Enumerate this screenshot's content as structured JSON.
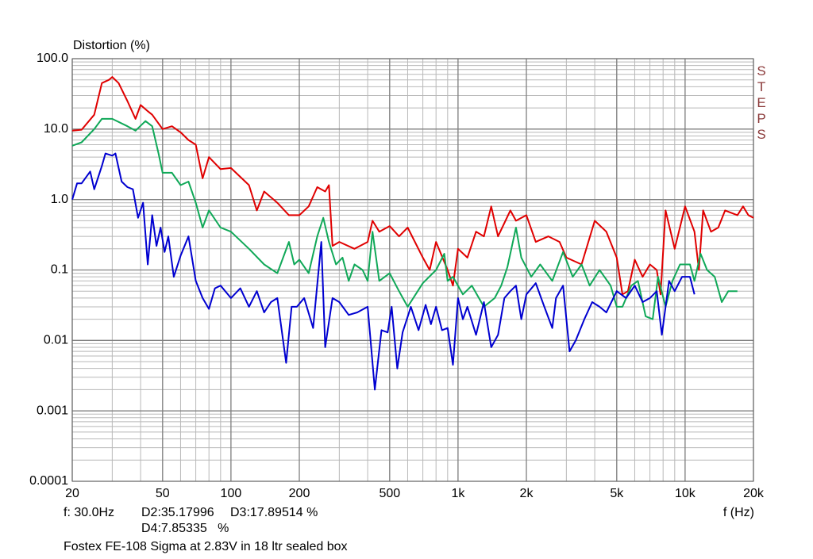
{
  "chart_data": {
    "type": "line",
    "title": "Distortion (%)",
    "x_label": "f (Hz)",
    "brand": "STEPS",
    "readout": [
      "f: 30.0Hz",
      "D2:35.17996",
      "D3:17.89514 %",
      "D4:7.85335   %"
    ],
    "caption": "Fostex FE-108 Sigma at 2.83V in 18 ltr sealed box",
    "xscale": "log",
    "yscale": "log",
    "grid": true,
    "xlim": [
      20,
      20000
    ],
    "ylim": [
      0.0001,
      100
    ],
    "xticks": [
      20,
      50,
      100,
      200,
      500,
      {
        "value": 1000,
        "label": "1k"
      },
      {
        "value": 2000,
        "label": "2k"
      },
      {
        "value": 5000,
        "label": "5k"
      },
      {
        "value": 10000,
        "label": "10k"
      },
      {
        "value": 20000,
        "label": "20k"
      }
    ],
    "yticks": [
      {
        "value": 100,
        "label": "100.0"
      },
      {
        "value": 10,
        "label": "10.0"
      },
      {
        "value": 1,
        "label": "1.0"
      },
      0.1,
      0.01,
      0.001,
      0.0001
    ],
    "series": [
      {
        "color": "#e00000",
        "x": [
          20,
          22,
          25,
          27,
          29,
          30,
          32,
          35,
          38,
          40,
          43,
          45,
          50,
          55,
          60,
          65,
          70,
          75,
          80,
          90,
          100,
          120,
          130,
          140,
          160,
          180,
          200,
          220,
          240,
          260,
          270,
          280,
          300,
          350,
          400,
          420,
          450,
          500,
          550,
          600,
          700,
          750,
          800,
          900,
          950,
          1000,
          1100,
          1200,
          1300,
          1400,
          1500,
          1700,
          1800,
          2000,
          2200,
          2500,
          2800,
          3000,
          3500,
          4000,
          4500,
          5000,
          5300,
          5600,
          6000,
          6500,
          7000,
          7500,
          7800,
          8200,
          9000,
          10000,
          11000,
          11500,
          12000,
          13000,
          14000,
          15000,
          17000,
          18000,
          19000,
          20000
        ],
        "values": [
          9.5,
          9.8,
          16,
          45,
          50,
          55,
          45,
          25,
          14,
          22,
          18,
          16,
          10,
          11,
          9,
          7,
          6,
          2,
          4,
          2.7,
          2.8,
          1.6,
          0.7,
          1.3,
          0.9,
          0.6,
          0.6,
          0.8,
          1.5,
          1.3,
          1.6,
          0.22,
          0.25,
          0.2,
          0.25,
          0.5,
          0.35,
          0.42,
          0.3,
          0.4,
          0.15,
          0.1,
          0.25,
          0.1,
          0.06,
          0.2,
          0.15,
          0.35,
          0.3,
          0.8,
          0.3,
          0.7,
          0.5,
          0.6,
          0.25,
          0.3,
          0.25,
          0.15,
          0.12,
          0.5,
          0.35,
          0.15,
          0.045,
          0.05,
          0.14,
          0.08,
          0.12,
          0.1,
          0.045,
          0.7,
          0.2,
          0.8,
          0.35,
          0.1,
          0.7,
          0.35,
          0.4,
          0.7,
          0.6,
          0.8,
          0.6,
          0.55
        ]
      },
      {
        "color": "#10a858",
        "x": [
          20,
          22,
          25,
          27,
          30,
          35,
          38,
          42,
          45,
          48,
          50,
          55,
          60,
          65,
          70,
          75,
          80,
          90,
          100,
          120,
          140,
          160,
          180,
          190,
          200,
          220,
          240,
          255,
          270,
          290,
          310,
          330,
          350,
          380,
          400,
          420,
          450,
          500,
          550,
          600,
          700,
          800,
          870,
          900,
          950,
          1050,
          1150,
          1300,
          1450,
          1550,
          1650,
          1800,
          1900,
          2100,
          2300,
          2600,
          2900,
          3200,
          3500,
          3800,
          4200,
          4700,
          5000,
          5300,
          5800,
          6200,
          6700,
          7200,
          7600,
          8200,
          8800,
          9500,
          10500,
          11000,
          11700,
          12500,
          13500,
          14500,
          15500,
          17000
        ],
        "values": [
          5.8,
          6.5,
          10,
          14,
          14,
          11,
          9.5,
          13,
          11,
          4.5,
          2.4,
          2.4,
          1.6,
          1.8,
          0.9,
          0.4,
          0.7,
          0.4,
          0.35,
          0.2,
          0.12,
          0.09,
          0.25,
          0.12,
          0.14,
          0.09,
          0.3,
          0.55,
          0.25,
          0.12,
          0.15,
          0.07,
          0.12,
          0.1,
          0.07,
          0.35,
          0.07,
          0.09,
          0.05,
          0.03,
          0.065,
          0.1,
          0.17,
          0.07,
          0.08,
          0.045,
          0.06,
          0.03,
          0.04,
          0.06,
          0.11,
          0.4,
          0.15,
          0.08,
          0.12,
          0.07,
          0.18,
          0.08,
          0.12,
          0.06,
          0.1,
          0.06,
          0.03,
          0.03,
          0.06,
          0.07,
          0.022,
          0.02,
          0.08,
          0.03,
          0.07,
          0.12,
          0.12,
          0.07,
          0.17,
          0.1,
          0.08,
          0.035,
          0.05,
          0.05
        ]
      },
      {
        "color": "#0000d0",
        "x": [
          20,
          21,
          22,
          24,
          25,
          27,
          28,
          30,
          31,
          33,
          35,
          37,
          39,
          41,
          43,
          45,
          47,
          49,
          51,
          53,
          56,
          60,
          65,
          70,
          75,
          80,
          85,
          90,
          100,
          110,
          120,
          130,
          140,
          150,
          160,
          175,
          185,
          195,
          210,
          230,
          250,
          260,
          280,
          300,
          330,
          360,
          400,
          430,
          460,
          490,
          510,
          540,
          570,
          620,
          670,
          720,
          760,
          800,
          850,
          900,
          950,
          1000,
          1050,
          1100,
          1200,
          1300,
          1400,
          1500,
          1600,
          1700,
          1800,
          1900,
          2000,
          2200,
          2400,
          2600,
          2700,
          2900,
          3100,
          3300,
          3600,
          3900,
          4200,
          4500,
          5000,
          5500,
          6000,
          6500,
          7000,
          7500,
          7900,
          8500,
          9000,
          9700,
          10500,
          11000
        ],
        "values": [
          1.0,
          1.7,
          1.7,
          2.5,
          1.4,
          3,
          4.5,
          4.2,
          4.5,
          1.8,
          1.5,
          1.4,
          0.55,
          0.9,
          0.12,
          0.6,
          0.22,
          0.4,
          0.18,
          0.3,
          0.08,
          0.16,
          0.3,
          0.07,
          0.04,
          0.028,
          0.055,
          0.06,
          0.04,
          0.055,
          0.03,
          0.05,
          0.025,
          0.035,
          0.04,
          0.0048,
          0.03,
          0.03,
          0.04,
          0.015,
          0.25,
          0.008,
          0.04,
          0.035,
          0.023,
          0.025,
          0.03,
          0.002,
          0.014,
          0.013,
          0.03,
          0.004,
          0.013,
          0.03,
          0.014,
          0.032,
          0.017,
          0.03,
          0.014,
          0.015,
          0.0045,
          0.04,
          0.02,
          0.03,
          0.012,
          0.035,
          0.008,
          0.012,
          0.04,
          0.05,
          0.06,
          0.02,
          0.045,
          0.065,
          0.03,
          0.015,
          0.04,
          0.06,
          0.007,
          0.01,
          0.02,
          0.035,
          0.03,
          0.025,
          0.05,
          0.04,
          0.06,
          0.035,
          0.04,
          0.05,
          0.012,
          0.07,
          0.05,
          0.08,
          0.08,
          0.045
        ]
      }
    ]
  }
}
